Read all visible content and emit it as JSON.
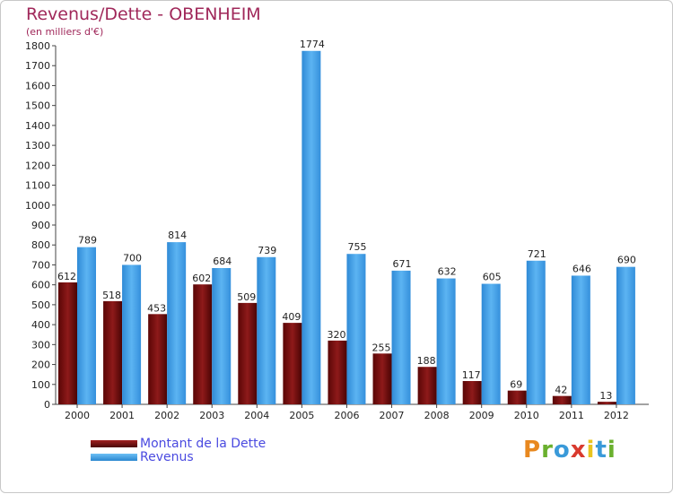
{
  "chart_data": {
    "type": "bar",
    "title": "Revenus/Dette - OBENHEIM",
    "subtitle": "(en milliers d'€)",
    "categories": [
      "2000",
      "2001",
      "2002",
      "2003",
      "2004",
      "2005",
      "2006",
      "2007",
      "2008",
      "2009",
      "2010",
      "2011",
      "2012"
    ],
    "series": [
      {
        "name": "Montant de la Dette",
        "color": "#7a0e0e",
        "values": [
          612,
          518,
          453,
          602,
          509,
          409,
          320,
          255,
          188,
          117,
          69,
          42,
          13
        ]
      },
      {
        "name": "Revenus",
        "color": "#4aa3e8",
        "values": [
          789,
          700,
          814,
          684,
          739,
          1774,
          755,
          671,
          632,
          605,
          721,
          646,
          690
        ]
      }
    ],
    "yticks": [
      0,
      100,
      200,
      300,
      400,
      500,
      600,
      700,
      800,
      900,
      1000,
      1100,
      1200,
      1300,
      1400,
      1500,
      1600,
      1700,
      1800
    ],
    "ylim": [
      0,
      1800
    ],
    "xlabel": "",
    "ylabel": "",
    "grid": false,
    "legend": "bottom-left"
  },
  "logo": {
    "text": "Proxiti",
    "letters": [
      {
        "ch": "P",
        "color": "#e8881f"
      },
      {
        "ch": "r",
        "color": "#6ab02e"
      },
      {
        "ch": "o",
        "color": "#3a9ad9"
      },
      {
        "ch": "x",
        "color": "#d93a2e"
      },
      {
        "ch": "i",
        "color": "#e8c41f"
      },
      {
        "ch": "t",
        "color": "#3a9ad9"
      },
      {
        "ch": "i",
        "color": "#6ab02e"
      }
    ]
  }
}
